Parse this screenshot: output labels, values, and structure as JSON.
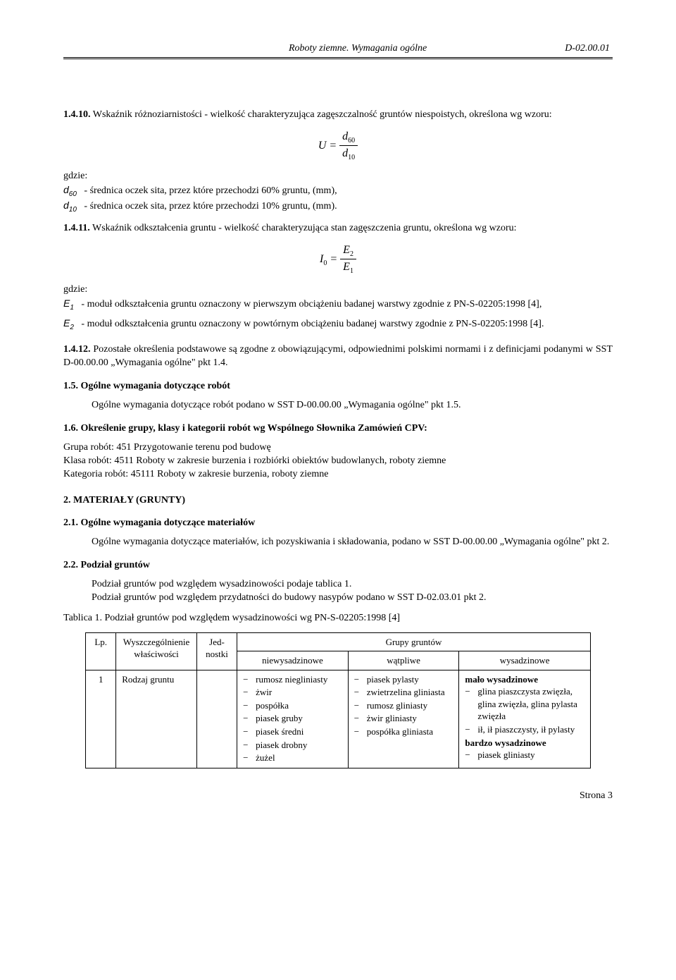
{
  "header": {
    "title": "Roboty ziemne. Wymagania ogólne",
    "code": "D-02.00.01"
  },
  "s1410": {
    "lead": "1.4.10.",
    "text": "Wskaźnik różnoziarnistości - wielkość charakteryzująca zagęszczalność gruntów niespoistych, określona wg wzoru:",
    "formula_left": "U",
    "formula_eq": " = ",
    "num": "d",
    "num_sub": "60",
    "den": "d",
    "den_sub": "10",
    "gdzie": "gdzie:",
    "d60_sym": "d",
    "d60_sub": "60",
    "d60_txt": "-   średnica oczek sita, przez które przechodzi 60% gruntu, (mm),",
    "d10_sym": "d",
    "d10_sub": "10",
    "d10_txt": "-   średnica oczek sita, przez które przechodzi 10% gruntu, (mm)."
  },
  "s1411": {
    "lead": "1.4.11.",
    "text": "Wskaźnik odkształcenia gruntu - wielkość charakteryzująca stan zagęszczenia gruntu, określona wg wzoru:",
    "formula_left": "I",
    "formula_i_sub": "0",
    "num": "E",
    "num_sub": "2",
    "den": "E",
    "den_sub": "1",
    "gdzie": "gdzie:",
    "e1_sym": "E",
    "e1_sub": "1",
    "e1_txt": "-  moduł odkształcenia gruntu oznaczony w pierwszym obciążeniu badanej warstwy zgodnie z PN-S-02205:1998 [4],",
    "e2_sym": "E",
    "e2_sub": "2",
    "e2_txt": "-  moduł odkształcenia gruntu oznaczony w powtórnym obciążeniu badanej warstwy zgodnie z PN-S-02205:1998 [4]."
  },
  "s1412": {
    "lead": "1.4.12.",
    "text": "Pozostałe określenia podstawowe są zgodne z obowiązującymi, odpowiednimi polskimi normami i z definicjami podanymi w SST D-00.00.00 „Wymagania ogólne\" pkt 1.4."
  },
  "s15": {
    "head": "1.5. Ogólne wymagania dotyczące robót",
    "body": "Ogólne wymagania dotyczące robót podano w SST D-00.00.00 „Wymagania ogólne\" pkt 1.5."
  },
  "s16": {
    "head": "1.6. Określenie grupy, klasy i kategorii robót wg Wspólnego Słownika Zamówień CPV:",
    "l1": "Grupa robót:  451     Przygotowanie terenu pod budowę",
    "l2": "Klasa robót:  4511   Roboty w zakresie burzenia i rozbiórki obiektów budowlanych, roboty ziemne",
    "l3": "Kategoria robót:  45111    Roboty w zakresie burzenia, roboty ziemne"
  },
  "s2": {
    "head": "2. MATERIAŁY (GRUNTY)"
  },
  "s21": {
    "head": "2.1. Ogólne wymagania dotyczące materiałów",
    "body": "Ogólne wymagania dotyczące materiałów, ich pozyskiwania i składowania, podano w SST D-00.00.00 „Wymagania ogólne\" pkt 2."
  },
  "s22": {
    "head": "2.2. Podział gruntów",
    "l1": "Podział gruntów pod względem wysadzinowości podaje tablica 1.",
    "l2": "Podział gruntów pod względem przydatności do budowy nasypów podano w SST D-02.03.01 pkt 2.",
    "caption": "Tablica 1. Podział gruntów pod względem wysadzinowości wg PN-S-02205:1998 [4]"
  },
  "table": {
    "h_lp": "Lp.",
    "h_wys": "Wyszczególnienie właściwości",
    "h_jed": "Jed-nostki",
    "h_grupy": "Grupy gruntów",
    "h_nie": "niewysadzinowe",
    "h_wat": "wątpliwe",
    "h_wys2": "wysadzinowe",
    "r1_lp": "1",
    "r1_col2": "Rodzaj gruntu",
    "r1_col3": "",
    "nie": [
      "rumosz niegliniasty",
      "żwir",
      "pospółka",
      "piasek gruby",
      "piasek średni",
      "piasek drobny",
      "żużel"
    ],
    "wat": [
      "piasek pylasty",
      "zwietrzelina gliniasta",
      "rumosz gliniasty",
      "żwir gliniasty",
      "pospółka gliniasta"
    ],
    "wys_h1": "mało wysadzinowe",
    "wys1": [
      "glina piaszczysta zwięzła, glina zwięzła, glina pylasta zwięzła",
      "ił, ił piaszczysty, ił pylasty"
    ],
    "wys_h2": "bardzo wysadzinowe",
    "wys2": [
      "piasek gliniasty"
    ]
  },
  "footer": {
    "page": "Strona 3"
  }
}
